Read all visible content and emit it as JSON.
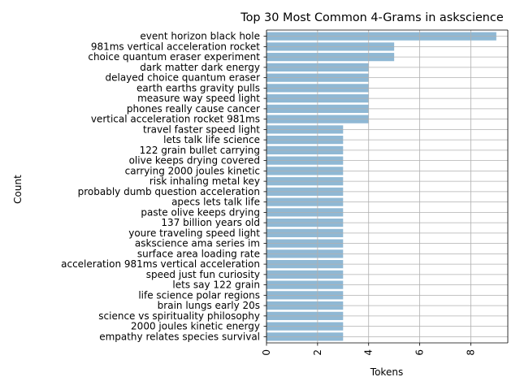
{
  "chart_data": {
    "type": "bar",
    "orientation": "horizontal",
    "title": "Top 30 Most Common 4-Grams in askscience",
    "xlabel": "Tokens",
    "ylabel": "Count",
    "xlim": [
      0,
      9.45
    ],
    "xticks": [
      0,
      2,
      4,
      6,
      8
    ],
    "grid": true,
    "bar_color": "#8fb8d4",
    "categories": [
      "event horizon black hole",
      "981ms vertical acceleration rocket",
      "choice quantum eraser experiment",
      "dark matter dark energy",
      "delayed choice quantum eraser",
      "earth earths gravity pulls",
      "measure way speed light",
      "phones really cause cancer",
      "vertical acceleration rocket 981ms",
      "travel faster speed light",
      "lets talk life science",
      "122 grain bullet carrying",
      "olive keeps drying covered",
      "carrying 2000 joules kinetic",
      "risk inhaling metal key",
      "probably dumb question acceleration",
      "apecs lets talk life",
      "paste olive keeps drying",
      "137 billion years old",
      "youre traveling speed light",
      "askscience ama series im",
      "surface area loading rate",
      "acceleration 981ms vertical acceleration",
      "speed just fun curiosity",
      "lets say 122 grain",
      "life science polar regions",
      "brain lungs early 20s",
      "science vs spirituality philosophy",
      "2000 joules kinetic energy",
      "empathy relates species survival"
    ],
    "values": [
      9,
      5,
      5,
      4,
      4,
      4,
      4,
      4,
      4,
      3,
      3,
      3,
      3,
      3,
      3,
      3,
      3,
      3,
      3,
      3,
      3,
      3,
      3,
      3,
      3,
      3,
      3,
      3,
      3,
      3
    ]
  }
}
